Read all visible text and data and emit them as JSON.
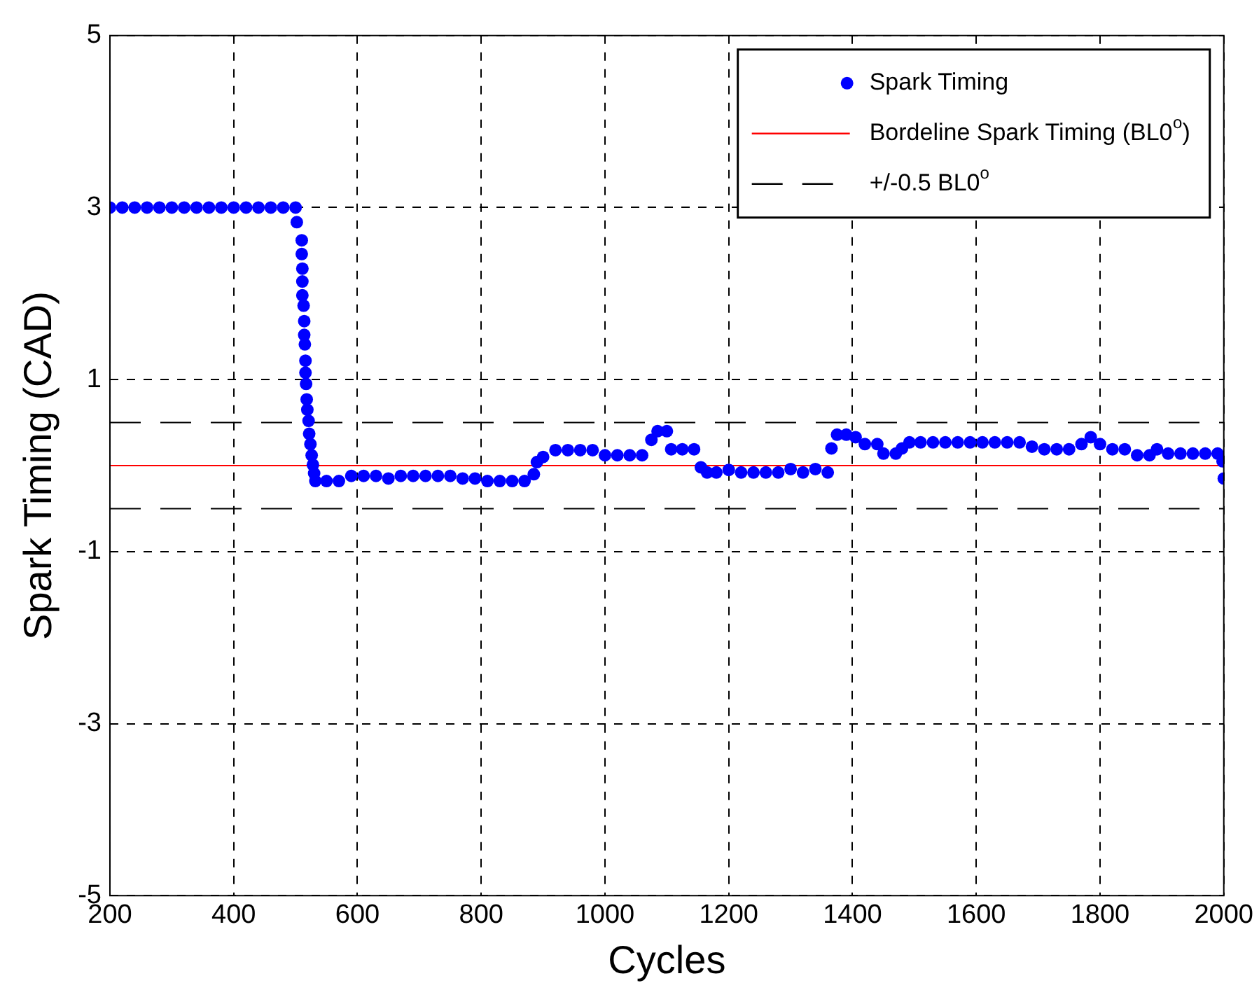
{
  "chart_data": {
    "type": "scatter",
    "xlabel": "Cycles",
    "ylabel": "Spark Timing (CAD)",
    "xlim": [
      200,
      2000
    ],
    "xticks": [
      200,
      400,
      600,
      800,
      1000,
      1200,
      1400,
      1600,
      1800,
      2000
    ],
    "ylim": [
      -5,
      5
    ],
    "yticks": [
      -5,
      -3,
      -1,
      1,
      3,
      5
    ],
    "grid": true,
    "legend": "top right",
    "marker": "circle",
    "series": [
      {
        "name": "Spark Timing",
        "color": "#0000ff",
        "x": [
          200,
          220,
          240,
          260,
          280,
          300,
          320,
          340,
          360,
          380,
          400,
          420,
          440,
          460,
          480,
          500,
          502,
          510,
          510,
          511,
          511,
          511,
          513,
          514,
          514,
          515,
          516,
          516,
          517,
          518,
          519,
          521,
          522,
          524,
          526,
          528,
          530,
          532,
          550,
          570,
          590,
          610,
          630,
          650,
          670,
          690,
          710,
          730,
          750,
          770,
          790,
          810,
          830,
          850,
          870,
          885,
          890,
          900,
          920,
          940,
          960,
          980,
          1000,
          1020,
          1040,
          1060,
          1075,
          1085,
          1100,
          1107,
          1125,
          1144,
          1155,
          1165,
          1180,
          1200,
          1220,
          1240,
          1260,
          1280,
          1300,
          1320,
          1340,
          1360,
          1366,
          1375,
          1390,
          1405,
          1420,
          1440,
          1450,
          1470,
          1480,
          1492,
          1510,
          1530,
          1550,
          1570,
          1590,
          1610,
          1630,
          1650,
          1670,
          1690,
          1710,
          1730,
          1750,
          1770,
          1785,
          1800,
          1820,
          1840,
          1860,
          1880,
          1892,
          1910,
          1930,
          1950,
          1970,
          1990,
          1998,
          2000
        ],
        "values": [
          3,
          3,
          3,
          3,
          3,
          3,
          3,
          3,
          3,
          3,
          3,
          3,
          3,
          3,
          3,
          3,
          2.83,
          2.62,
          2.46,
          2.29,
          2.14,
          1.98,
          1.86,
          1.68,
          1.52,
          1.41,
          1.22,
          1.08,
          0.95,
          0.77,
          0.65,
          0.52,
          0.37,
          0.25,
          0.12,
          0.01,
          -0.09,
          -0.18,
          -0.18,
          -0.18,
          -0.12,
          -0.12,
          -0.12,
          -0.15,
          -0.12,
          -0.12,
          -0.12,
          -0.12,
          -0.12,
          -0.15,
          -0.15,
          -0.18,
          -0.18,
          -0.18,
          -0.18,
          -0.1,
          0.04,
          0.1,
          0.18,
          0.18,
          0.18,
          0.18,
          0.12,
          0.12,
          0.12,
          0.12,
          0.3,
          0.4,
          0.4,
          0.19,
          0.19,
          0.19,
          -0.02,
          -0.08,
          -0.08,
          -0.05,
          -0.08,
          -0.08,
          -0.08,
          -0.08,
          -0.04,
          -0.08,
          -0.04,
          -0.08,
          0.2,
          0.36,
          0.36,
          0.33,
          0.25,
          0.25,
          0.14,
          0.14,
          0.2,
          0.27,
          0.27,
          0.27,
          0.27,
          0.27,
          0.27,
          0.27,
          0.27,
          0.27,
          0.27,
          0.22,
          0.19,
          0.19,
          0.19,
          0.25,
          0.33,
          0.25,
          0.19,
          0.19,
          0.12,
          0.12,
          0.19,
          0.14,
          0.14,
          0.14,
          0.14,
          0.14,
          0.05,
          -0.15
        ]
      }
    ],
    "ref_lines": [
      {
        "axis": "y",
        "value": 0,
        "label": "Bordeline Spark Timing (BL0$^{o}$)",
        "color": "#ff0000",
        "line_style": "solid"
      },
      {
        "axis": "y",
        "value": 0.5,
        "label": "+/-0.5 BL0$^{o}$",
        "color": "#000000",
        "line_style": "dashed"
      },
      {
        "axis": "y",
        "value": -0.5,
        "color": "#000000",
        "line_style": "dashed"
      }
    ]
  }
}
